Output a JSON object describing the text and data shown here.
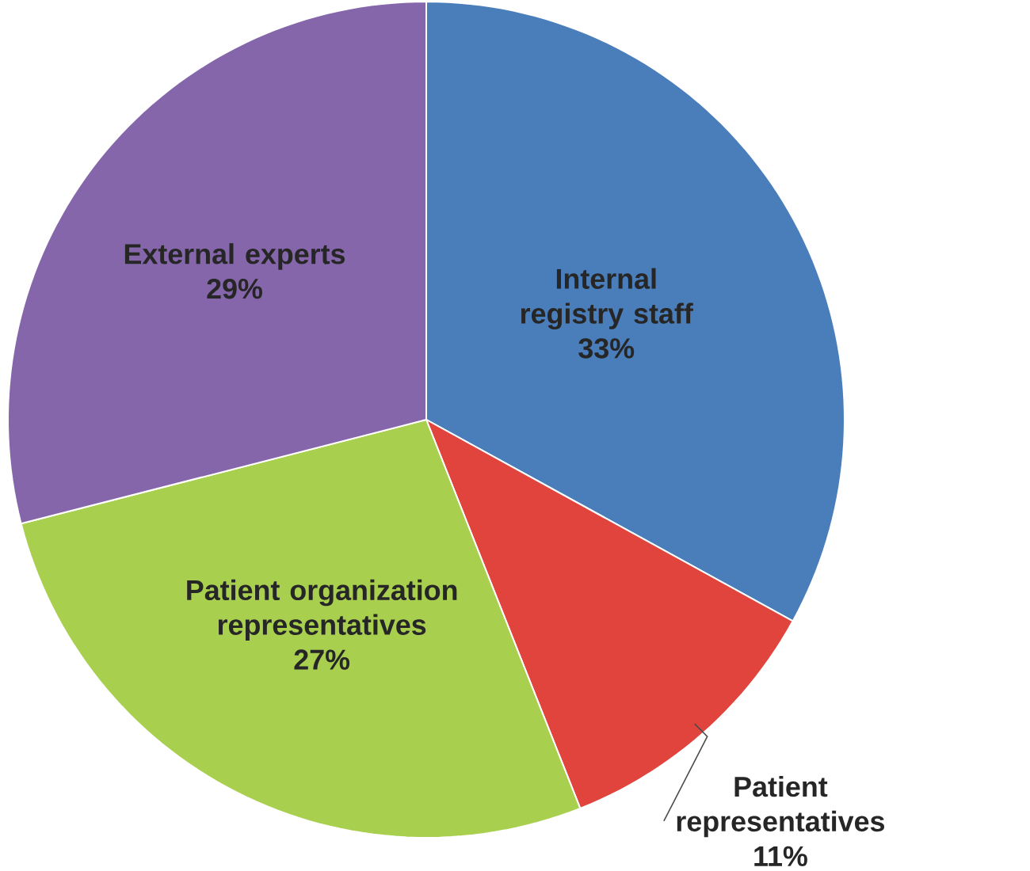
{
  "chart_data": {
    "type": "pie",
    "categories": [
      "Internal registry staff",
      "Patient representatives",
      "Patient organization representatives",
      "External experts"
    ],
    "values": [
      33,
      11,
      27,
      29
    ],
    "colors": [
      "#4a7ebb",
      "#e0443c",
      "#a9cf4f",
      "#8566ab"
    ],
    "value_labels": [
      "33%",
      "11%",
      "27%",
      "29%"
    ]
  }
}
